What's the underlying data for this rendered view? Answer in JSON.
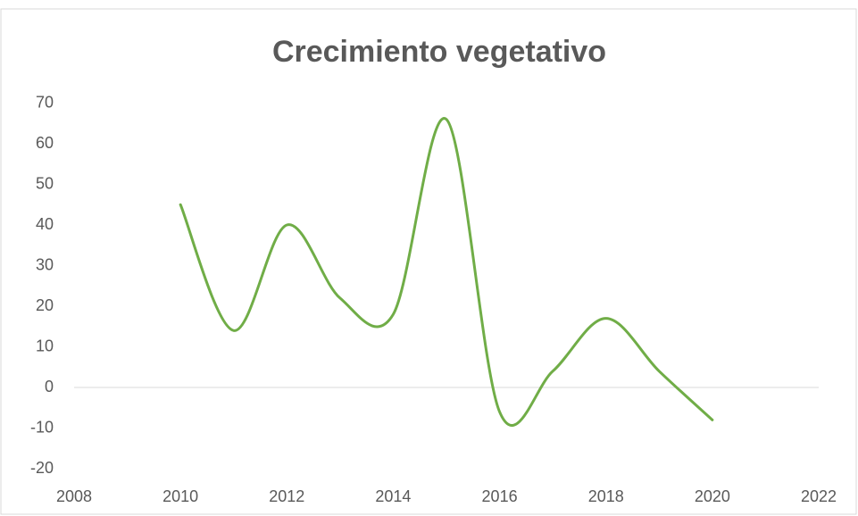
{
  "chart_data": {
    "type": "line",
    "title": "Crecimiento vegetativo",
    "x": [
      2010,
      2011,
      2012,
      2013,
      2014,
      2015,
      2016,
      2017,
      2018,
      2019,
      2020
    ],
    "series": [
      {
        "name": "Crecimiento vegetativo",
        "color": "#70ad47",
        "values": [
          45,
          14,
          40,
          22,
          18,
          66,
          -6,
          4,
          17,
          4,
          -8
        ]
      }
    ],
    "xlim": [
      2008,
      2022
    ],
    "xticks": [
      2008,
      2010,
      2012,
      2014,
      2016,
      2018,
      2020,
      2022
    ],
    "ylim": [
      -20,
      70
    ],
    "yticks": [
      -20,
      -10,
      0,
      10,
      20,
      30,
      40,
      50,
      60,
      70
    ],
    "grid": false,
    "smooth": true
  }
}
